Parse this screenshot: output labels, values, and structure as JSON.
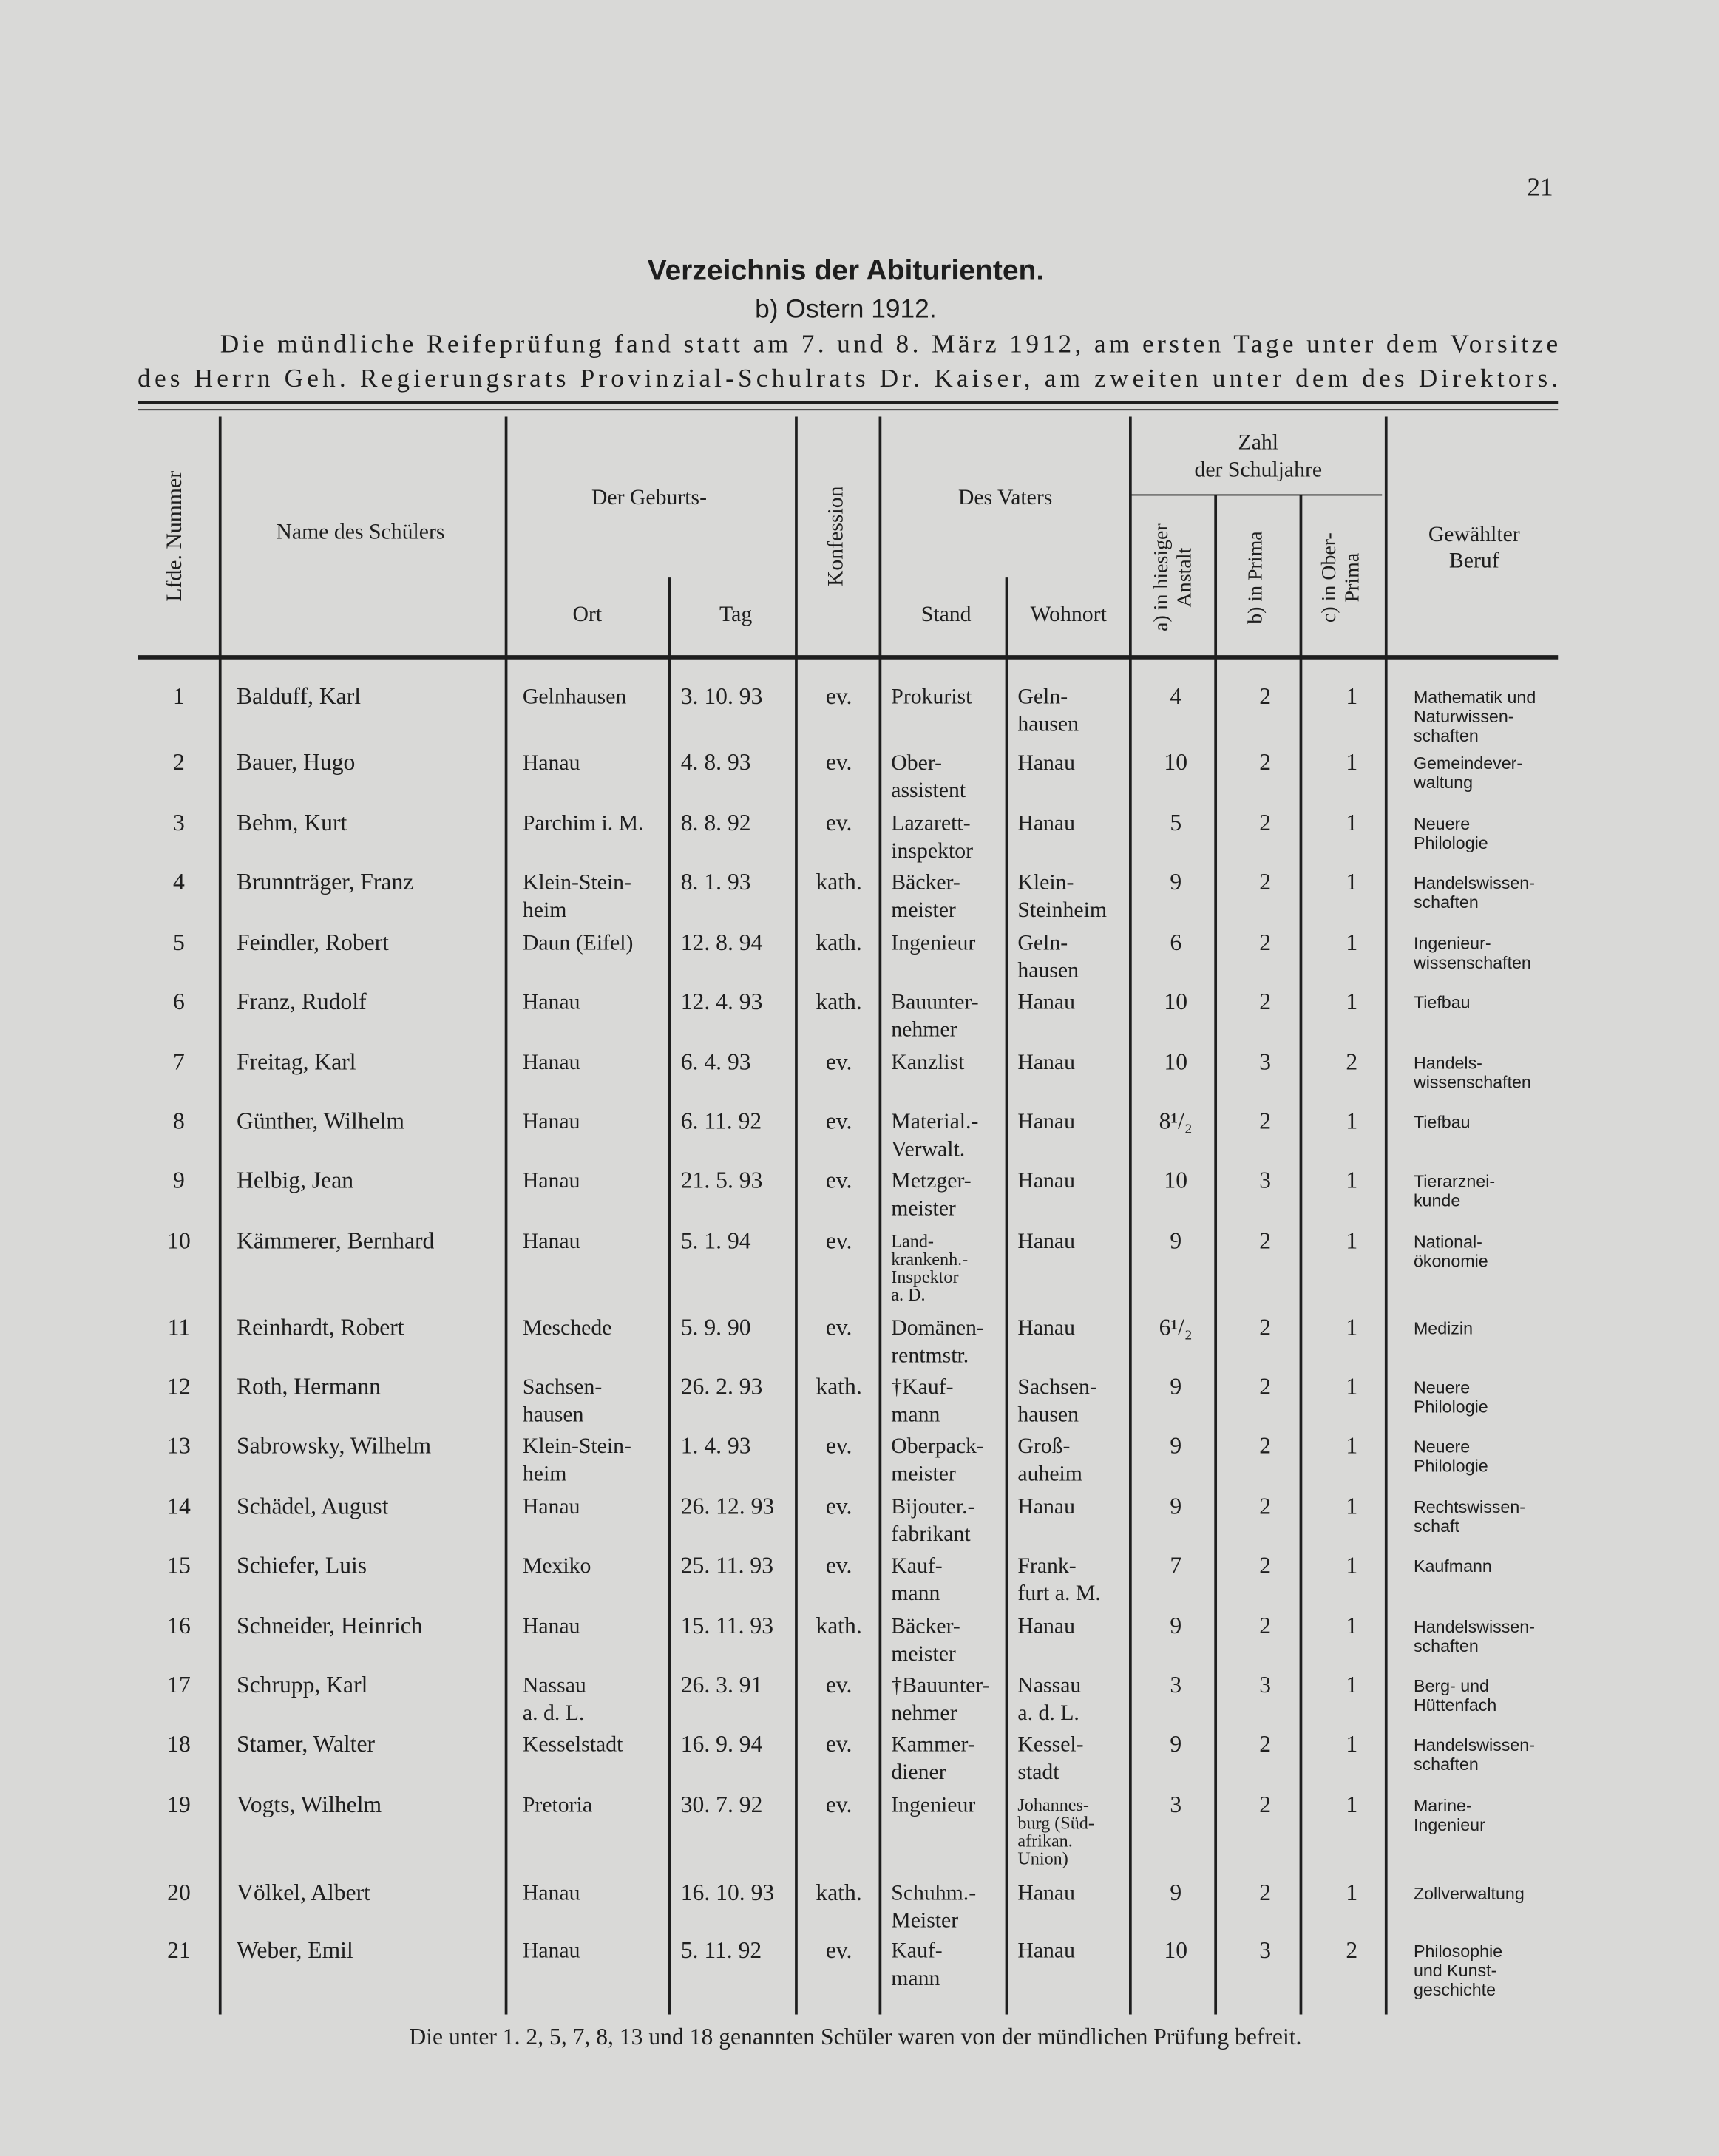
{
  "page_number": "21",
  "title": "Verzeichnis der Abiturienten.",
  "subtitle": "b) Ostern 1912.",
  "intro": [
    "Die mündliche Reifeprüfung fand statt am 7. und 8. März 1912, am ersten Tage unter dem Vorsitze",
    "des Herrn Geh. Regierungsrats Provinzial-Schulrats Dr. Kaiser, am zweiten unter dem des Direktors."
  ],
  "table": {
    "header": {
      "nummer": "Lfde. Nummer",
      "name": "Name des Schülers",
      "geburt": "Der Geburts-",
      "ort": "Ort",
      "tag": "Tag",
      "konfession": "Konfession",
      "vater": "Des Vaters",
      "stand": "Stand",
      "wohnort": "Wohnort",
      "schuljahre": [
        "Zahl",
        "der Schuljahre"
      ],
      "anstalt": [
        "a) in hiesiger",
        "Anstalt"
      ],
      "prima": "b) in Prima",
      "oberprima": [
        "c) in Ober-",
        "Prima"
      ],
      "beruf": [
        "Gewählter",
        "Beruf"
      ]
    },
    "rows": [
      {
        "nr": 1,
        "name": "Balduff, Karl",
        "ort": "Gelnhausen",
        "tag": "3. 10. 93",
        "konf": "ev.",
        "stand": "Prokurist",
        "wohnort": [
          "Geln-",
          "hausen"
        ],
        "a": 4,
        "b": 2,
        "c": 1,
        "beruf": [
          "Mathematik und",
          "Naturwissen-",
          "schaften"
        ]
      },
      {
        "nr": 2,
        "name": "Bauer, Hugo",
        "ort": "Hanau",
        "tag": "4. 8. 93",
        "konf": "ev.",
        "stand": [
          "Ober-",
          "assistent"
        ],
        "wohnort": "Hanau",
        "a": 10,
        "b": 2,
        "c": 1,
        "beruf": [
          "Gemeindever-",
          "waltung"
        ]
      },
      {
        "nr": 3,
        "name": "Behm, Kurt",
        "ort": "Parchim i. M.",
        "tag": "8. 8. 92",
        "konf": "ev.",
        "stand": [
          "Lazarett-",
          "inspektor"
        ],
        "wohnort": "Hanau",
        "a": 5,
        "b": 2,
        "c": 1,
        "beruf": [
          "Neuere",
          "Philologie"
        ]
      },
      {
        "nr": 4,
        "name": "Brunnträger, Franz",
        "ort": [
          "Klein-Stein-",
          "heim"
        ],
        "tag": "8. 1. 93",
        "konf": "kath.",
        "stand": [
          "Bäcker-",
          "meister"
        ],
        "wohnort": [
          "Klein-",
          "Steinheim"
        ],
        "a": 9,
        "b": 2,
        "c": 1,
        "beruf": [
          "Handelswissen-",
          "schaften"
        ]
      },
      {
        "nr": 5,
        "name": "Feindler, Robert",
        "ort": "Daun (Eifel)",
        "tag": "12. 8. 94",
        "konf": "kath.",
        "stand": "Ingenieur",
        "wohnort": [
          "Geln-",
          "hausen"
        ],
        "a": 6,
        "b": 2,
        "c": 1,
        "beruf": [
          "Ingenieur-",
          "wissenschaften"
        ]
      },
      {
        "nr": 6,
        "name": "Franz, Rudolf",
        "ort": "Hanau",
        "tag": "12. 4. 93",
        "konf": "kath.",
        "stand": [
          "Bauunter-",
          "nehmer"
        ],
        "wohnort": "Hanau",
        "a": 10,
        "b": 2,
        "c": 1,
        "beruf": "Tiefbau"
      },
      {
        "nr": 7,
        "name": "Freitag, Karl",
        "ort": "Hanau",
        "tag": "6. 4. 93",
        "konf": "ev.",
        "stand": "Kanzlist",
        "wohnort": "Hanau",
        "a": 10,
        "b": 3,
        "c": 2,
        "beruf": [
          "Handels-",
          "wissenschaften"
        ]
      },
      {
        "nr": 8,
        "name": "Günther, Wilhelm",
        "ort": "Hanau",
        "tag": "6. 11. 92",
        "konf": "ev.",
        "stand": [
          "Material.-",
          "Verwalt."
        ],
        "wohnort": "Hanau",
        "a": "8¹/₂",
        "b": 2,
        "c": 1,
        "beruf": "Tiefbau"
      },
      {
        "nr": 9,
        "name": "Helbig, Jean",
        "ort": "Hanau",
        "tag": "21. 5. 93",
        "konf": "ev.",
        "stand": [
          "Metzger-",
          "meister"
        ],
        "wohnort": "Hanau",
        "a": 10,
        "b": 3,
        "c": 1,
        "beruf": [
          "Tierarznei-",
          "kunde"
        ]
      },
      {
        "nr": 10,
        "name": "Kämmerer, Bernhard",
        "ort": "Hanau",
        "tag": "5. 1. 94",
        "konf": "ev.",
        "stand": [
          "Land-",
          "krankenh.-",
          "Inspektor",
          "a. D."
        ],
        "wohnort": "Hanau",
        "a": 9,
        "b": 2,
        "c": 1,
        "beruf": [
          "National-",
          "ökonomie"
        ]
      },
      {
        "nr": 11,
        "name": "Reinhardt, Robert",
        "ort": "Meschede",
        "tag": "5. 9. 90",
        "konf": "ev.",
        "stand": [
          "Domänen-",
          "rentmstr."
        ],
        "wohnort": "Hanau",
        "a": "6¹/₂",
        "b": 2,
        "c": 1,
        "beruf": "Medizin"
      },
      {
        "nr": 12,
        "name": "Roth, Hermann",
        "ort": [
          "Sachsen-",
          "hausen"
        ],
        "tag": "26. 2. 93",
        "konf": "kath.",
        "stand": [
          "†Kauf-",
          "mann"
        ],
        "wohnort": [
          "Sachsen-",
          "hausen"
        ],
        "a": 9,
        "b": 2,
        "c": 1,
        "beruf": [
          "Neuere",
          "Philologie"
        ]
      },
      {
        "nr": 13,
        "name": "Sabrowsky, Wilhelm",
        "ort": [
          "Klein-Stein-",
          "heim"
        ],
        "tag": "1. 4. 93",
        "konf": "ev.",
        "stand": [
          "Oberpack-",
          "meister"
        ],
        "wohnort": [
          "Groß-",
          "auheim"
        ],
        "a": 9,
        "b": 2,
        "c": 1,
        "beruf": [
          "Neuere",
          "Philologie"
        ]
      },
      {
        "nr": 14,
        "name": "Schädel, August",
        "ort": "Hanau",
        "tag": "26. 12. 93",
        "konf": "ev.",
        "stand": [
          "Bijouter.-",
          "fabrikant"
        ],
        "wohnort": "Hanau",
        "a": 9,
        "b": 2,
        "c": 1,
        "beruf": [
          "Rechtswissen-",
          "schaft"
        ]
      },
      {
        "nr": 15,
        "name": "Schiefer, Luis",
        "ort": "Mexiko",
        "tag": "25. 11. 93",
        "konf": "ev.",
        "stand": [
          "Kauf-",
          "mann"
        ],
        "wohnort": [
          "Frank-",
          "furt a. M."
        ],
        "a": 7,
        "b": 2,
        "c": 1,
        "beruf": "Kaufmann"
      },
      {
        "nr": 16,
        "name": "Schneider, Heinrich",
        "ort": "Hanau",
        "tag": "15. 11. 93",
        "konf": "kath.",
        "stand": [
          "Bäcker-",
          "meister"
        ],
        "wohnort": "Hanau",
        "a": 9,
        "b": 2,
        "c": 1,
        "beruf": [
          "Handelswissen-",
          "schaften"
        ]
      },
      {
        "nr": 17,
        "name": "Schrupp, Karl",
        "ort": [
          "Nassau",
          "a. d. L."
        ],
        "tag": "26. 3. 91",
        "konf": "ev.",
        "stand": [
          "†Bauunter-",
          "nehmer"
        ],
        "wohnort": [
          "Nassau",
          "a. d. L."
        ],
        "a": 3,
        "b": 3,
        "c": 1,
        "beruf": [
          "Berg- und",
          "Hüttenfach"
        ]
      },
      {
        "nr": 18,
        "name": "Stamer, Walter",
        "ort": "Kesselstadt",
        "tag": "16. 9. 94",
        "konf": "ev.",
        "stand": [
          "Kammer-",
          "diener"
        ],
        "wohnort": [
          "Kessel-",
          "stadt"
        ],
        "a": 9,
        "b": 2,
        "c": 1,
        "beruf": [
          "Handelswissen-",
          "schaften"
        ]
      },
      {
        "nr": 19,
        "name": "Vogts, Wilhelm",
        "ort": "Pretoria",
        "tag": "30. 7. 92",
        "konf": "ev.",
        "stand": "Ingenieur",
        "wohnort": [
          "Johannes-",
          "burg (Süd-",
          "afrikan.",
          "Union)"
        ],
        "a": 3,
        "b": 2,
        "c": 1,
        "beruf": [
          "Marine-",
          "Ingenieur"
        ]
      },
      {
        "nr": 20,
        "name": "Völkel, Albert",
        "ort": "Hanau",
        "tag": "16. 10. 93",
        "konf": "kath.",
        "stand": [
          "Schuhm.-",
          "Meister"
        ],
        "wohnort": "Hanau",
        "a": 9,
        "b": 2,
        "c": 1,
        "beruf": "Zollverwaltung"
      },
      {
        "nr": 21,
        "name": "Weber, Emil",
        "ort": "Hanau",
        "tag": "5. 11. 92",
        "konf": "ev.",
        "stand": [
          "Kauf-",
          "mann"
        ],
        "wohnort": "Hanau",
        "a": 10,
        "b": 3,
        "c": 2,
        "beruf": [
          "Philosophie",
          "und Kunst-",
          "geschichte"
        ]
      }
    ]
  },
  "footnote": "Die unter 1. 2, 5, 7, 8, 13 und 18 genannten Schüler waren von der mündlichen Prüfung befreit."
}
